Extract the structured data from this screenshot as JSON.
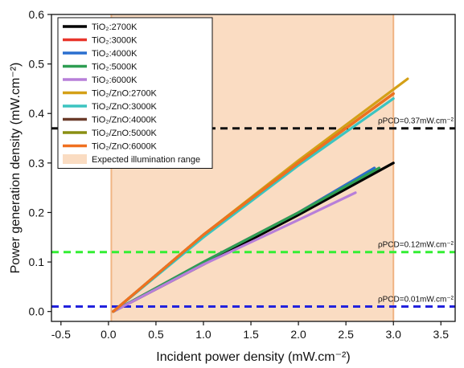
{
  "chart_data": {
    "type": "line",
    "xlabel": "Incident power density (mW.cm⁻²)",
    "ylabel": "Power generation density (mW.cm⁻²)",
    "xlim": [
      -0.6,
      3.65
    ],
    "ylim": [
      -0.02,
      0.6
    ],
    "x_ticks": [
      -0.5,
      0,
      0.5,
      1,
      1.5,
      2,
      2.5,
      3,
      3.5
    ],
    "y_ticks": [
      0.0,
      0.1,
      0.2,
      0.3,
      0.4,
      0.5,
      0.6
    ],
    "x_tick_labels": [
      "-0.5",
      "0.0",
      "0.5",
      "1.0",
      "1.5",
      "2.0",
      "2.5",
      "3.0",
      "3.5"
    ],
    "y_tick_labels": [
      "0.0",
      "0.1",
      "0.2",
      "0.3",
      "0.4",
      "0.5",
      "0.6"
    ],
    "grid": false,
    "legend_position": "top-left",
    "shaded_region": {
      "x": [
        0.03,
        3.0
      ],
      "label": "Expected illumination range",
      "color": "#fadcc2"
    },
    "series": [
      {
        "name": "TiO₂:2700K",
        "color": "#000000",
        "x": [
          0.05,
          1.0,
          2.0,
          3.0
        ],
        "y": [
          0.0,
          0.095,
          0.195,
          0.3
        ]
      },
      {
        "name": "TiO₂:3000K",
        "color": "#e8352b",
        "x": [
          0.05,
          1.0,
          2.0,
          2.8
        ],
        "y": [
          0.0,
          0.1,
          0.2,
          0.29
        ]
      },
      {
        "name": "TiO₂:4000K",
        "color": "#2a6fcf",
        "x": [
          0.05,
          1.0,
          2.0,
          2.8
        ],
        "y": [
          0.0,
          0.1,
          0.2,
          0.29
        ]
      },
      {
        "name": "TiO₂:5000K",
        "color": "#2e9e52",
        "x": [
          0.05,
          1.0,
          2.0,
          2.85
        ],
        "y": [
          0.0,
          0.1,
          0.2,
          0.29
        ]
      },
      {
        "name": "TiO₂:6000K",
        "color": "#b77fd9",
        "x": [
          0.05,
          1.0,
          2.0,
          2.6
        ],
        "y": [
          0.0,
          0.095,
          0.185,
          0.24
        ]
      },
      {
        "name": "TiO₂/ZnO:2700K",
        "color": "#d4a017",
        "x": [
          0.05,
          1.0,
          2.0,
          3.15
        ],
        "y": [
          0.0,
          0.155,
          0.305,
          0.47
        ]
      },
      {
        "name": "TiO₂/ZnO:3000K",
        "color": "#3cc4c0",
        "x": [
          0.05,
          1.0,
          2.0,
          3.0
        ],
        "y": [
          0.0,
          0.15,
          0.295,
          0.43
        ]
      },
      {
        "name": "TiO₂/ZnO:4000K",
        "color": "#6b3b2a",
        "x": [
          0.05,
          1.0,
          2.0,
          3.0
        ],
        "y": [
          0.0,
          0.155,
          0.3,
          0.44
        ]
      },
      {
        "name": "TiO₂/ZnO:5000K",
        "color": "#8a8f12",
        "x": [
          0.05,
          1.0,
          2.0,
          3.0
        ],
        "y": [
          0.0,
          0.155,
          0.3,
          0.44
        ]
      },
      {
        "name": "TiO₂/ZnO:6000K",
        "color": "#f07020",
        "x": [
          0.05,
          1.0,
          2.0,
          3.0
        ],
        "y": [
          0.0,
          0.155,
          0.3,
          0.44
        ]
      }
    ],
    "reference_lines": [
      {
        "label": "ρPCD=0.37mW.cm⁻²",
        "y": 0.37,
        "color": "#111111"
      },
      {
        "label": "ρPCD=0.12mW.cm⁻²",
        "y": 0.12,
        "color": "#33ee33"
      },
      {
        "label": "ρPCD=0.01mW.cm⁻²",
        "y": 0.01,
        "color": "#2222dd"
      }
    ]
  }
}
